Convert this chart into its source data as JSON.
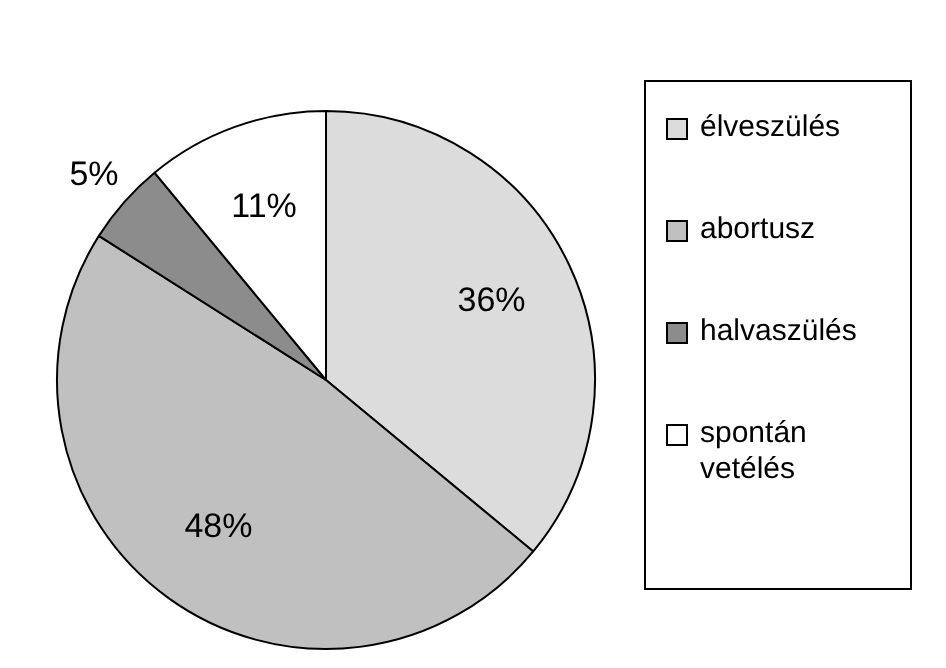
{
  "chart_data": {
    "type": "pie",
    "categories": [
      "élveszülés",
      "abortusz",
      "halvaszülés",
      "spontán vetélés"
    ],
    "values": [
      36,
      48,
      5,
      11
    ],
    "colors": [
      "#dcdcdc",
      "#c0c0c0",
      "#8c8c8c",
      "#ffffff"
    ],
    "value_labels": [
      "36%",
      "48%",
      "5%",
      "11%"
    ],
    "legend": "right"
  }
}
